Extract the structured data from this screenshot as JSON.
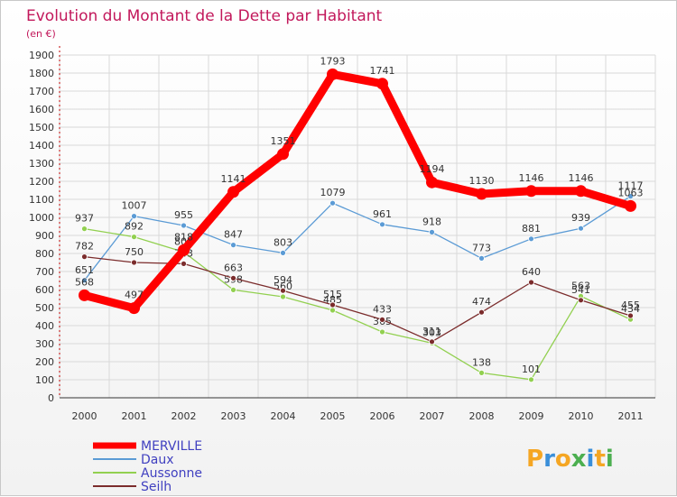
{
  "chart_data": {
    "type": "line",
    "title": "Evolution du Montant de la Dette par Habitant",
    "subtitle": "(en €)",
    "x": [
      "2000",
      "2001",
      "2002",
      "2003",
      "2004",
      "2005",
      "2006",
      "2007",
      "2008",
      "2009",
      "2010",
      "2011"
    ],
    "ylim": [
      0,
      1900
    ],
    "ystep": 100,
    "grid": true,
    "legend_position": "bottom-left",
    "series": [
      {
        "name": "Daux",
        "color": "#5b9bd5",
        "values": [
          651,
          1007,
          955,
          847,
          803,
          1079,
          961,
          918,
          773,
          881,
          939,
          1117
        ]
      },
      {
        "name": "Aussonne",
        "color": "#92d050",
        "values": [
          937,
          892,
          808,
          598,
          560,
          485,
          365,
          303,
          138,
          101,
          563,
          434
        ]
      },
      {
        "name": "Seilh",
        "color": "#7b2c2c",
        "values": [
          782,
          750,
          743,
          663,
          594,
          515,
          433,
          311,
          474,
          640,
          541,
          455
        ]
      },
      {
        "name": "MERVILLE",
        "color": "#ff0000",
        "values": [
          568,
          497,
          818,
          1141,
          1351,
          1793,
          1741,
          1194,
          1130,
          1146,
          1146,
          1063
        ]
      }
    ],
    "legend": [
      "MERVILLE",
      "Daux",
      "Aussonne",
      "Seilh"
    ],
    "legend_color": "#4040c0"
  },
  "logo": {
    "letters": [
      "P",
      "r",
      "o",
      "x",
      "i",
      "t",
      "i"
    ]
  }
}
